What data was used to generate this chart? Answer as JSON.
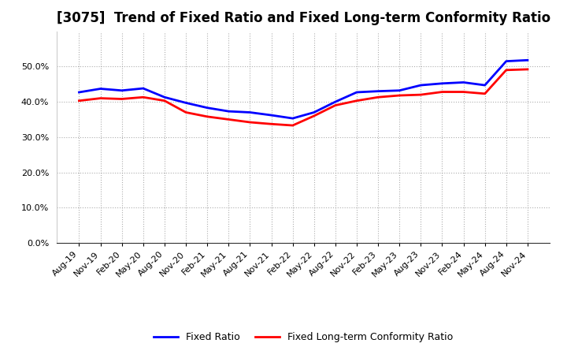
{
  "title": "[3075]  Trend of Fixed Ratio and Fixed Long-term Conformity Ratio",
  "x_labels": [
    "Aug-19",
    "Nov-19",
    "Feb-20",
    "May-20",
    "Aug-20",
    "Nov-20",
    "Feb-21",
    "May-21",
    "Aug-21",
    "Nov-21",
    "Feb-22",
    "May-22",
    "Aug-22",
    "Nov-22",
    "Feb-23",
    "May-23",
    "Aug-23",
    "Nov-23",
    "Feb-24",
    "May-24",
    "Aug-24",
    "Nov-24"
  ],
  "fixed_ratio": [
    0.427,
    0.437,
    0.432,
    0.438,
    0.413,
    0.397,
    0.383,
    0.373,
    0.37,
    0.362,
    0.353,
    0.37,
    0.4,
    0.427,
    0.43,
    0.432,
    0.447,
    0.452,
    0.455,
    0.447,
    0.515,
    0.518
  ],
  "fixed_lt_ratio": [
    0.403,
    0.41,
    0.408,
    0.413,
    0.403,
    0.37,
    0.358,
    0.35,
    0.342,
    0.337,
    0.333,
    0.36,
    0.39,
    0.403,
    0.413,
    0.418,
    0.42,
    0.428,
    0.428,
    0.423,
    0.49,
    0.492
  ],
  "fixed_ratio_color": "#0000FF",
  "fixed_lt_ratio_color": "#FF0000",
  "ylim": [
    0.0,
    0.6
  ],
  "yticks": [
    0.0,
    0.1,
    0.2,
    0.3,
    0.4,
    0.5
  ],
  "background_color": "#FFFFFF",
  "plot_background_color": "#FFFFFF",
  "grid_color": "#999999",
  "legend_fixed_ratio": "Fixed Ratio",
  "legend_fixed_lt_ratio": "Fixed Long-term Conformity Ratio",
  "line_width": 2.0,
  "title_fontsize": 12,
  "tick_fontsize": 8,
  "legend_fontsize": 9
}
